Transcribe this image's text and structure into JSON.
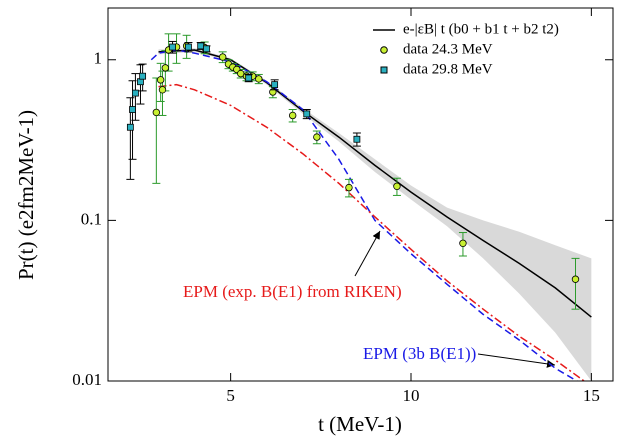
{
  "chart_data": {
    "type": "line",
    "ylabel": "Pr(t)  (e2fm2MeV-1)",
    "xlabel": "t  (MeV-1)",
    "xlim": [
      1.6,
      15.6
    ],
    "ylim": [
      0.01,
      2.1
    ],
    "log_y": true,
    "xticks": [
      5,
      10,
      15
    ],
    "yticks": [
      0.01,
      0.1,
      1
    ],
    "legend": "upper right",
    "band": {
      "color": "#d9d9d9",
      "x": [
        3,
        4,
        5,
        6,
        7,
        8,
        9,
        10,
        11,
        12,
        13,
        14,
        15
      ],
      "lower": [
        1.08,
        1.12,
        0.98,
        0.7,
        0.46,
        0.31,
        0.2,
        0.135,
        0.092,
        0.058,
        0.035,
        0.02,
        0.01
      ],
      "upper": [
        1.16,
        1.18,
        1.02,
        0.74,
        0.5,
        0.35,
        0.24,
        0.165,
        0.12,
        0.1,
        0.085,
        0.07,
        0.058
      ]
    },
    "series": [
      {
        "name": "e-|εB| t (b0 + b1 t + b2 t2)",
        "kind": "line",
        "color": "#000000",
        "dash": "none",
        "x": [
          3,
          4,
          5,
          6,
          7,
          8,
          9,
          10,
          11,
          12,
          13,
          14,
          15
        ],
        "values": [
          1.12,
          1.15,
          1.0,
          0.72,
          0.48,
          0.33,
          0.22,
          0.15,
          0.105,
          0.075,
          0.054,
          0.038,
          0.025
        ]
      },
      {
        "name": "data 24.3 MeV",
        "kind": "scatter",
        "marker": "circle",
        "color": "#c8f032",
        "error_color": "#2a9a2a",
        "x": [
          2.94,
          3.06,
          3.11,
          3.19,
          3.28,
          3.5,
          3.78,
          4.28,
          4.78,
          4.94,
          5.06,
          5.17,
          5.28,
          5.44,
          5.61,
          5.78,
          6.17,
          6.72,
          7.39,
          8.28,
          9.61,
          11.44,
          14.56
        ],
        "values": [
          0.47,
          0.75,
          0.65,
          0.89,
          1.15,
          1.2,
          1.22,
          1.19,
          1.04,
          0.94,
          0.9,
          0.87,
          0.82,
          0.79,
          0.79,
          0.76,
          0.63,
          0.45,
          0.33,
          0.16,
          0.163,
          0.072,
          0.043
        ],
        "errors": [
          0.3,
          0.2,
          0.2,
          0.25,
          0.3,
          0.25,
          0.2,
          0.1,
          0.08,
          0.06,
          0.05,
          0.05,
          0.05,
          0.05,
          0.05,
          0.05,
          0.05,
          0.04,
          0.03,
          0.02,
          0.02,
          0.012,
          0.015
        ]
      },
      {
        "name": "data 29.8 MeV",
        "kind": "scatter",
        "marker": "square",
        "color": "#2ab0c0",
        "error_color": "#000000",
        "x": [
          2.22,
          2.28,
          2.36,
          2.5,
          2.56,
          3.39,
          3.83,
          4.17,
          4.33,
          5.5,
          6.22,
          7.11,
          8.5
        ],
        "values": [
          0.38,
          0.49,
          0.62,
          0.73,
          0.79,
          1.2,
          1.2,
          1.22,
          1.17,
          0.77,
          0.7,
          0.46,
          0.32
        ],
        "errors": [
          0.2,
          0.25,
          0.2,
          0.2,
          0.15,
          0.1,
          0.08,
          0.06,
          0.05,
          0.04,
          0.05,
          0.03,
          0.03
        ]
      },
      {
        "kind": "line",
        "color": "#1a1ae6",
        "dash": "7,4",
        "x": [
          2.8,
          3,
          3.5,
          4,
          5,
          6,
          7,
          8,
          9,
          10,
          11,
          12,
          13,
          14,
          14.6
        ],
        "values": [
          1.0,
          1.1,
          1.15,
          1.1,
          0.97,
          0.73,
          0.49,
          0.24,
          0.1,
          0.062,
          0.04,
          0.026,
          0.018,
          0.012,
          0.01
        ]
      },
      {
        "kind": "line",
        "color": "#e61a1a",
        "dash": "8,3,2,3",
        "x": [
          3,
          3.5,
          4,
          5,
          6,
          7,
          8,
          9,
          10,
          11,
          12,
          13,
          14,
          14.8
        ],
        "values": [
          0.68,
          0.7,
          0.65,
          0.52,
          0.38,
          0.26,
          0.17,
          0.105,
          0.066,
          0.042,
          0.028,
          0.019,
          0.0135,
          0.01
        ]
      }
    ],
    "annotations": [
      {
        "text": "EPM (exp. B(E1) from RIKEN)",
        "color": "#e61a1a"
      },
      {
        "text": "EPM (3b B(E1))",
        "color": "#1a1ae6"
      }
    ]
  }
}
